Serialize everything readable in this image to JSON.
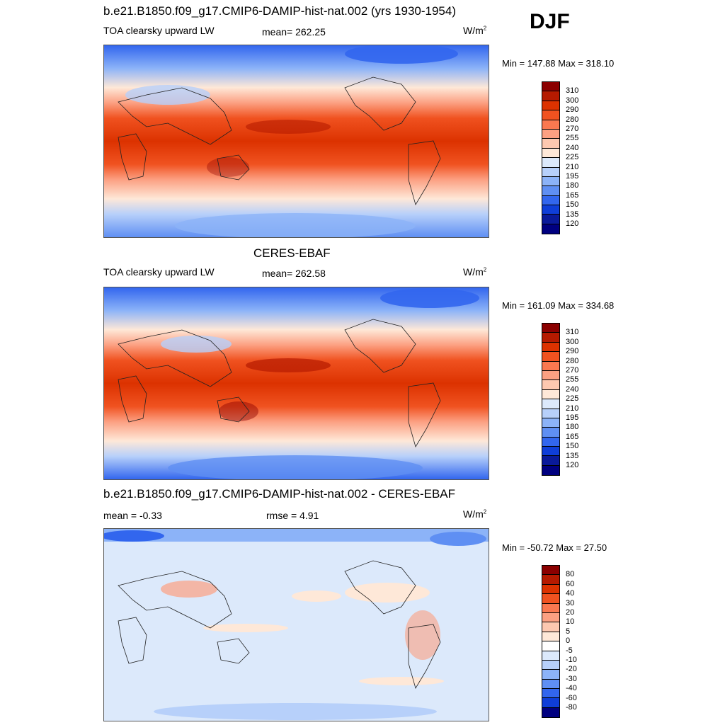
{
  "season": "DJF",
  "chart_data": [
    {
      "type": "heatmap",
      "title": "b.e21.B1850.f09_g17.CMIP6-DAMIP-hist-nat.002 (yrs 1930-1954)",
      "variable": "TOA clearsky upward LW",
      "stats": {
        "mean_label": "mean= 262.25"
      },
      "units_base": "W/m",
      "units_exp": "2",
      "minmax": "Min = 147.88 Max = 318.10",
      "levels": [
        "310",
        "300",
        "290",
        "280",
        "270",
        "255",
        "240",
        "225",
        "210",
        "195",
        "180",
        "165",
        "150",
        "135",
        "120"
      ],
      "colors": [
        "#8b0000",
        "#b51a00",
        "#dc3200",
        "#f05220",
        "#fa7850",
        "#fca082",
        "#fdc8b0",
        "#fee8d8",
        "#dce9fb",
        "#b7d0fa",
        "#8cb3f8",
        "#5f8ff3",
        "#3266ee",
        "#0f3ed8",
        "#0a1a9a",
        "#000080"
      ]
    },
    {
      "type": "heatmap",
      "title": "CERES-EBAF",
      "variable": "TOA clearsky upward LW",
      "stats": {
        "mean_label": "mean= 262.58"
      },
      "units_base": "W/m",
      "units_exp": "2",
      "minmax": "Min = 161.09 Max = 334.68",
      "levels": [
        "310",
        "300",
        "290",
        "280",
        "270",
        "255",
        "240",
        "225",
        "210",
        "195",
        "180",
        "165",
        "150",
        "135",
        "120"
      ],
      "colors": [
        "#8b0000",
        "#b51a00",
        "#dc3200",
        "#f05220",
        "#fa7850",
        "#fca082",
        "#fdc8b0",
        "#fee8d8",
        "#dce9fb",
        "#b7d0fa",
        "#8cb3f8",
        "#5f8ff3",
        "#3266ee",
        "#0f3ed8",
        "#0a1a9a",
        "#000080"
      ]
    },
    {
      "type": "heatmap",
      "title": "b.e21.B1850.f09_g17.CMIP6-DAMIP-hist-nat.002 - CERES-EBAF",
      "variable": "",
      "stats": {
        "mean_label": "mean =  -0.33",
        "rmse_label": "rmse =   4.91"
      },
      "units_base": "W/m",
      "units_exp": "2",
      "minmax": "Min = -50.72 Max =  27.50",
      "levels": [
        "80",
        "60",
        "40",
        "30",
        "20",
        "10",
        "5",
        "0",
        "-5",
        "-10",
        "-20",
        "-30",
        "-40",
        "-60",
        "-80"
      ],
      "colors": [
        "#8b0000",
        "#b51a00",
        "#dc3200",
        "#f05220",
        "#fa7850",
        "#fca082",
        "#fdc8b0",
        "#fee8d8",
        "#ffffff",
        "#dce9fb",
        "#b7d0fa",
        "#8cb3f8",
        "#5f8ff3",
        "#3266ee",
        "#0f3ed8",
        "#000080"
      ]
    }
  ]
}
